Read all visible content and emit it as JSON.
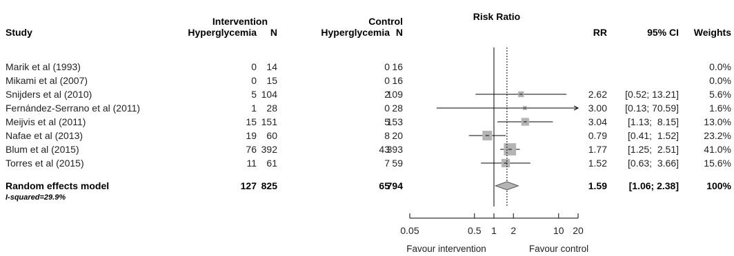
{
  "headers": {
    "intervention_group": "Intervention",
    "control_group": "Control",
    "risk_ratio": "Risk Ratio",
    "study": "Study",
    "int_events": "Hyperglycemia",
    "int_n": "N",
    "ctl_events": "Hyperglycemia",
    "ctl_n": "N",
    "rr": "RR",
    "ci": "95% CI",
    "weights": "Weights"
  },
  "pooled": {
    "label": "Random effects model",
    "int_events": "127",
    "int_n": "825",
    "ctl_events": "65",
    "ctl_n": "794",
    "rr_text": "1.59",
    "ci_text": "[1.06; 2.38]",
    "weight_text": "100%",
    "heterogeneity": "I-squared=29.9%"
  },
  "axis": {
    "ticks": [
      "0.05",
      "0.5",
      "1",
      "2",
      "10",
      "20"
    ],
    "favour_left": "Favour intervention",
    "favour_right": "Favour control"
  },
  "chart_data": {
    "type": "forest",
    "title": "Risk Ratio",
    "x_scale": "log",
    "xlim": [
      0.05,
      20
    ],
    "tick_values": [
      0.05,
      0.5,
      1,
      2,
      10,
      20
    ],
    "reference_line": 1,
    "pooled_line": 1.59,
    "rows": [
      {
        "study": "Marik et al (1993)",
        "int_events": "0",
        "int_n": "14",
        "ctl_events": "0",
        "ctl_n": "16",
        "rr": null,
        "lower": null,
        "upper": null,
        "rr_text": "",
        "ci_text": "",
        "weight": 0.0,
        "weight_text": "0.0%"
      },
      {
        "study": "Mikami et al (2007)",
        "int_events": "0",
        "int_n": "15",
        "ctl_events": "0",
        "ctl_n": "16",
        "rr": null,
        "lower": null,
        "upper": null,
        "rr_text": "",
        "ci_text": "",
        "weight": 0.0,
        "weight_text": "0.0%"
      },
      {
        "study": "Snijders et al (2010)",
        "int_events": "5",
        "int_n": "104",
        "ctl_events": "2",
        "ctl_n": "109",
        "rr": 2.62,
        "lower": 0.52,
        "upper": 13.21,
        "rr_text": "2.62",
        "ci_text": "[0.52; 13.21]",
        "weight": 5.6,
        "weight_text": "5.6%"
      },
      {
        "study": "Fernández-Serrano et al (2011)",
        "int_events": "1",
        "int_n": "28",
        "ctl_events": "0",
        "ctl_n": "28",
        "rr": 3.0,
        "lower": 0.13,
        "upper": 70.59,
        "rr_text": "3.00",
        "ci_text": "[0.13; 70.59]",
        "weight": 1.6,
        "weight_text": "1.6%"
      },
      {
        "study": "Meijvis et al (2011)",
        "int_events": "15",
        "int_n": "151",
        "ctl_events": "5",
        "ctl_n": "153",
        "rr": 3.04,
        "lower": 1.13,
        "upper": 8.15,
        "rr_text": "3.04",
        "ci_text": "[1.13;  8.15]",
        "weight": 13.0,
        "weight_text": "13.0%"
      },
      {
        "study": "Nafae et al (2013)",
        "int_events": "19",
        "int_n": "60",
        "ctl_events": "8",
        "ctl_n": "20",
        "rr": 0.79,
        "lower": 0.41,
        "upper": 1.52,
        "rr_text": "0.79",
        "ci_text": "[0.41;  1.52]",
        "weight": 23.2,
        "weight_text": "23.2%"
      },
      {
        "study": "Blum et al (2015)",
        "int_events": "76",
        "int_n": "392",
        "ctl_events": "43",
        "ctl_n": "393",
        "rr": 1.77,
        "lower": 1.25,
        "upper": 2.51,
        "rr_text": "1.77",
        "ci_text": "[1.25;  2.51]",
        "weight": 41.0,
        "weight_text": "41.0%"
      },
      {
        "study": "Torres et al (2015)",
        "int_events": "11",
        "int_n": "61",
        "ctl_events": "7",
        "ctl_n": "59",
        "rr": 1.52,
        "lower": 0.63,
        "upper": 3.66,
        "rr_text": "1.52",
        "ci_text": "[0.63;  3.66]",
        "weight": 15.6,
        "weight_text": "15.6%"
      }
    ],
    "pooled": {
      "rr": 1.59,
      "lower": 1.06,
      "upper": 2.38
    }
  }
}
